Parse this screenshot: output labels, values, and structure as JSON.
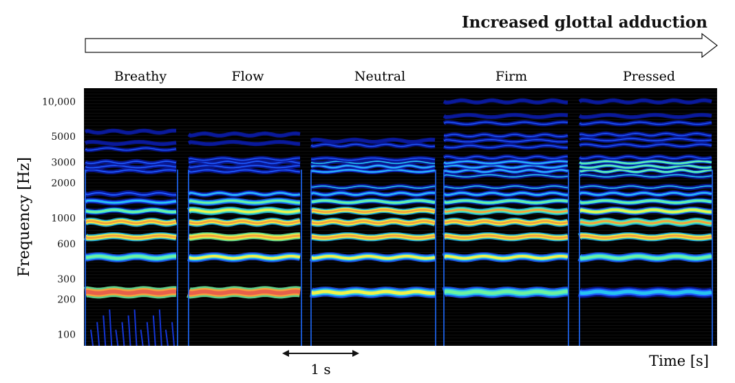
{
  "chart_data": {
    "type": "heatmap",
    "title": "",
    "header_arrow_label": "Increased glottal adduction",
    "xlabel": "Time [s]",
    "ylabel": "Frequency [Hz]",
    "y_scale": "log",
    "ylim": [
      80,
      13000
    ],
    "y_ticks": [
      {
        "value": 10000,
        "label": "10,000"
      },
      {
        "value": 5000,
        "label": "5000"
      },
      {
        "value": 3000,
        "label": "3000"
      },
      {
        "value": 2000,
        "label": "2000"
      },
      {
        "value": 1000,
        "label": "1000"
      },
      {
        "value": 600,
        "label": "600"
      },
      {
        "value": 300,
        "label": "300"
      },
      {
        "value": 200,
        "label": "200"
      },
      {
        "value": 100,
        "label": "100"
      }
    ],
    "time_scale": {
      "label": "1 s",
      "duration_s": 1
    },
    "background_color": "#000000",
    "colormap": [
      "#0a1a9e",
      "#1f5cff",
      "#27c4f0",
      "#6df2a0",
      "#f0f24a",
      "#f5a33a",
      "#e8604a"
    ],
    "segments": [
      {
        "name": "Breathy",
        "harmonics": [
          {
            "freq": 230,
            "intensity": 0.95,
            "width": 1.8
          },
          {
            "freq": 460,
            "intensity": 0.55,
            "width": 1.2
          },
          {
            "freq": 690,
            "intensity": 0.85,
            "width": 1.0
          },
          {
            "freq": 920,
            "intensity": 0.8,
            "width": 1.0
          },
          {
            "freq": 1150,
            "intensity": 0.45,
            "width": 0.9
          },
          {
            "freq": 1380,
            "intensity": 0.35,
            "width": 0.8
          },
          {
            "freq": 1610,
            "intensity": 0.22,
            "width": 0.6
          },
          {
            "freq": 2530,
            "intensity": 0.14,
            "width": 0.5
          },
          {
            "freq": 2760,
            "intensity": 0.12,
            "width": 0.5
          },
          {
            "freq": 3000,
            "intensity": 0.12,
            "width": 0.5
          },
          {
            "freq": 3900,
            "intensity": 0.1,
            "width": 0.4
          },
          {
            "freq": 4400,
            "intensity": 0.08,
            "width": 0.4
          },
          {
            "freq": 5500,
            "intensity": 0.06,
            "width": 0.4
          }
        ]
      },
      {
        "name": "Flow",
        "harmonics": [
          {
            "freq": 230,
            "intensity": 0.95,
            "width": 1.8
          },
          {
            "freq": 460,
            "intensity": 0.6,
            "width": 1.2
          },
          {
            "freq": 690,
            "intensity": 0.88,
            "width": 1.0
          },
          {
            "freq": 920,
            "intensity": 0.85,
            "width": 1.0
          },
          {
            "freq": 1150,
            "intensity": 0.72,
            "width": 0.9
          },
          {
            "freq": 1380,
            "intensity": 0.55,
            "width": 0.8
          },
          {
            "freq": 1610,
            "intensity": 0.3,
            "width": 0.6
          },
          {
            "freq": 2530,
            "intensity": 0.2,
            "width": 0.5
          },
          {
            "freq": 2760,
            "intensity": 0.16,
            "width": 0.5
          },
          {
            "freq": 3000,
            "intensity": 0.14,
            "width": 0.5
          },
          {
            "freq": 3200,
            "intensity": 0.12,
            "width": 0.4
          },
          {
            "freq": 4400,
            "intensity": 0.08,
            "width": 0.4
          },
          {
            "freq": 5200,
            "intensity": 0.06,
            "width": 0.4
          }
        ]
      },
      {
        "name": "Neutral",
        "harmonics": [
          {
            "freq": 230,
            "intensity": 0.6,
            "width": 1.6
          },
          {
            "freq": 460,
            "intensity": 0.6,
            "width": 1.2
          },
          {
            "freq": 690,
            "intensity": 0.85,
            "width": 1.0
          },
          {
            "freq": 920,
            "intensity": 0.82,
            "width": 1.0
          },
          {
            "freq": 1150,
            "intensity": 0.8,
            "width": 0.9
          },
          {
            "freq": 1380,
            "intensity": 0.5,
            "width": 0.8
          },
          {
            "freq": 1610,
            "intensity": 0.32,
            "width": 0.6
          },
          {
            "freq": 1840,
            "intensity": 0.25,
            "width": 0.5
          },
          {
            "freq": 2530,
            "intensity": 0.3,
            "width": 0.5
          },
          {
            "freq": 2760,
            "intensity": 0.32,
            "width": 0.5
          },
          {
            "freq": 3000,
            "intensity": 0.28,
            "width": 0.5
          },
          {
            "freq": 3200,
            "intensity": 0.2,
            "width": 0.4
          },
          {
            "freq": 4200,
            "intensity": 0.1,
            "width": 0.4
          },
          {
            "freq": 4600,
            "intensity": 0.08,
            "width": 0.4
          }
        ]
      },
      {
        "name": "Firm",
        "harmonics": [
          {
            "freq": 230,
            "intensity": 0.58,
            "width": 1.6
          },
          {
            "freq": 460,
            "intensity": 0.6,
            "width": 1.2
          },
          {
            "freq": 690,
            "intensity": 0.85,
            "width": 1.0
          },
          {
            "freq": 920,
            "intensity": 0.82,
            "width": 1.0
          },
          {
            "freq": 1150,
            "intensity": 0.78,
            "width": 0.9
          },
          {
            "freq": 1380,
            "intensity": 0.45,
            "width": 0.8
          },
          {
            "freq": 1610,
            "intensity": 0.3,
            "width": 0.6
          },
          {
            "freq": 1840,
            "intensity": 0.25,
            "width": 0.5
          },
          {
            "freq": 2300,
            "intensity": 0.25,
            "width": 0.5
          },
          {
            "freq": 2530,
            "intensity": 0.3,
            "width": 0.5
          },
          {
            "freq": 2760,
            "intensity": 0.32,
            "width": 0.5
          },
          {
            "freq": 3000,
            "intensity": 0.3,
            "width": 0.5
          },
          {
            "freq": 3300,
            "intensity": 0.2,
            "width": 0.4
          },
          {
            "freq": 4100,
            "intensity": 0.12,
            "width": 0.4
          },
          {
            "freq": 4600,
            "intensity": 0.12,
            "width": 0.4
          },
          {
            "freq": 5100,
            "intensity": 0.12,
            "width": 0.4
          },
          {
            "freq": 6500,
            "intensity": 0.1,
            "width": 0.4
          },
          {
            "freq": 7500,
            "intensity": 0.08,
            "width": 0.4
          },
          {
            "freq": 10000,
            "intensity": 0.06,
            "width": 0.4
          }
        ]
      },
      {
        "name": "Pressed",
        "harmonics": [
          {
            "freq": 230,
            "intensity": 0.4,
            "width": 1.6
          },
          {
            "freq": 460,
            "intensity": 0.55,
            "width": 1.2
          },
          {
            "freq": 690,
            "intensity": 0.8,
            "width": 1.0
          },
          {
            "freq": 920,
            "intensity": 0.78,
            "width": 1.0
          },
          {
            "freq": 1150,
            "intensity": 0.7,
            "width": 0.9
          },
          {
            "freq": 1380,
            "intensity": 0.5,
            "width": 0.8
          },
          {
            "freq": 1610,
            "intensity": 0.32,
            "width": 0.6
          },
          {
            "freq": 1840,
            "intensity": 0.25,
            "width": 0.5
          },
          {
            "freq": 2300,
            "intensity": 0.28,
            "width": 0.5
          },
          {
            "freq": 2530,
            "intensity": 0.45,
            "width": 0.5
          },
          {
            "freq": 2760,
            "intensity": 0.5,
            "width": 0.5
          },
          {
            "freq": 3000,
            "intensity": 0.45,
            "width": 0.5
          },
          {
            "freq": 3300,
            "intensity": 0.2,
            "width": 0.4
          },
          {
            "freq": 4200,
            "intensity": 0.14,
            "width": 0.4
          },
          {
            "freq": 4700,
            "intensity": 0.12,
            "width": 0.4
          },
          {
            "freq": 5200,
            "intensity": 0.12,
            "width": 0.4
          },
          {
            "freq": 6500,
            "intensity": 0.1,
            "width": 0.4
          },
          {
            "freq": 7500,
            "intensity": 0.08,
            "width": 0.4
          },
          {
            "freq": 10000,
            "intensity": 0.06,
            "width": 0.4
          }
        ]
      }
    ]
  }
}
